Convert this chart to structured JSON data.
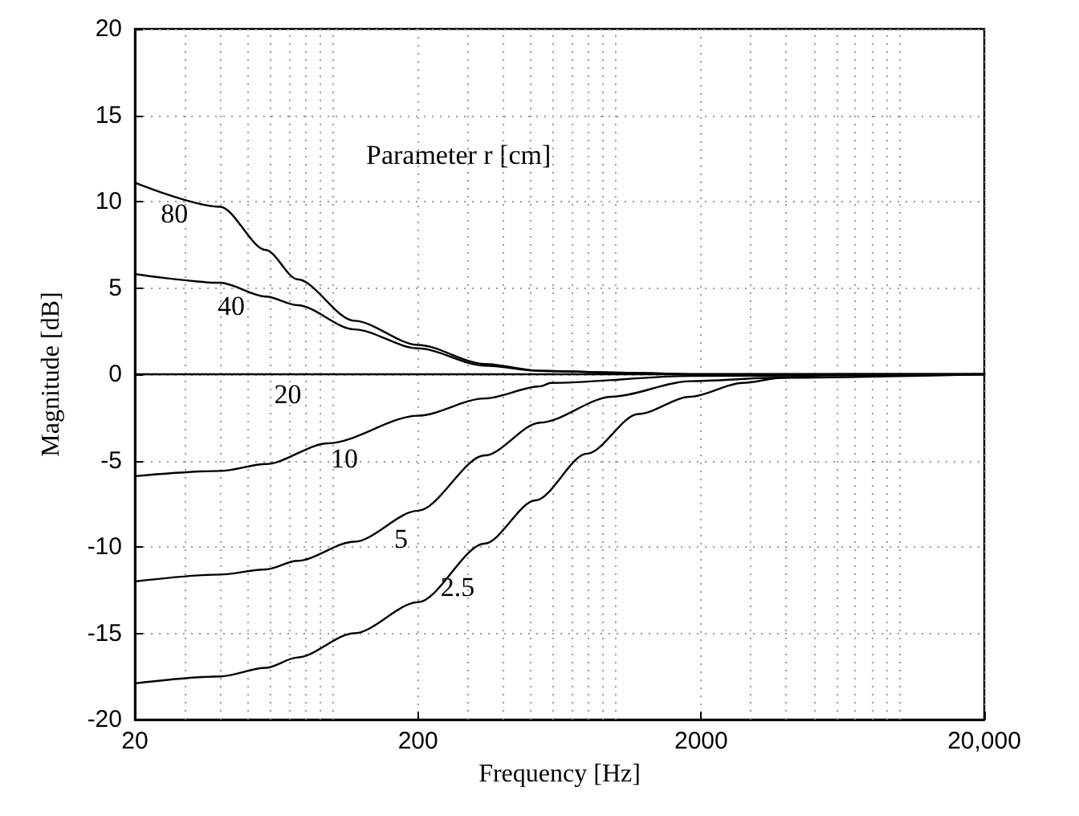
{
  "chart_data": {
    "type": "line",
    "xlabel": "Frequency [Hz]",
    "ylabel": "Magnitude [dB]",
    "log": "x",
    "xlim": [
      20,
      20000
    ],
    "xticks": [
      20,
      200,
      2000,
      {
        "value": 20000,
        "label": "20,000"
      }
    ],
    "ylim": [
      -20,
      20
    ],
    "yticks": [
      -20,
      -15,
      -10,
      -5,
      0,
      5,
      10,
      15,
      20
    ],
    "grid": true,
    "marker": "none",
    "line_style": "solid",
    "series": [
      {
        "name": "80",
        "color": "#000000",
        "x": [
          20,
          40,
          58,
          75,
          119,
          200,
          344,
          540,
          1000,
          2000,
          20000
        ],
        "values": [
          11.1,
          9.7,
          7.2,
          5.5,
          3.1,
          1.7,
          0.6,
          0.2,
          0.1,
          0,
          0
        ]
      },
      {
        "name": "40",
        "color": "#000000",
        "x": [
          20,
          40,
          58,
          75,
          119,
          200,
          344,
          540,
          1000,
          2000,
          20000
        ],
        "values": [
          5.8,
          5.3,
          4.5,
          4.0,
          2.6,
          1.5,
          0.5,
          0.2,
          0.1,
          0,
          0
        ]
      },
      {
        "name": "20",
        "color": "#000000",
        "x": [
          20,
          20000
        ],
        "values": [
          0,
          0
        ]
      },
      {
        "name": "10",
        "color": "#000000",
        "x": [
          20,
          40,
          58,
          96,
          200,
          344,
          540,
          590,
          1830,
          20000
        ],
        "values": [
          -5.9,
          -5.6,
          -5.2,
          -4.0,
          -2.4,
          -1.4,
          -0.7,
          -0.5,
          -0.1,
          0
        ]
      },
      {
        "name": "5",
        "color": "#000000",
        "x": [
          20,
          40,
          58,
          75,
          119,
          200,
          344,
          540,
          968,
          1830,
          3700,
          20000
        ],
        "values": [
          -12.0,
          -11.6,
          -11.3,
          -10.8,
          -9.7,
          -7.9,
          -4.7,
          -2.8,
          -1.3,
          -0.4,
          -0.2,
          0
        ]
      },
      {
        "name": "2.5",
        "color": "#000000",
        "x": [
          20,
          40,
          58,
          75,
          119,
          200,
          344,
          520,
          790,
          1200,
          1830,
          2800,
          3900,
          6000,
          20000
        ],
        "values": [
          -17.9,
          -17.5,
          -17.0,
          -16.4,
          -15.0,
          -13.2,
          -9.8,
          -7.3,
          -4.6,
          -2.3,
          -1.3,
          -0.5,
          -0.2,
          0,
          0
        ]
      }
    ],
    "annotations": [
      "Parameter r [cm]"
    ]
  }
}
